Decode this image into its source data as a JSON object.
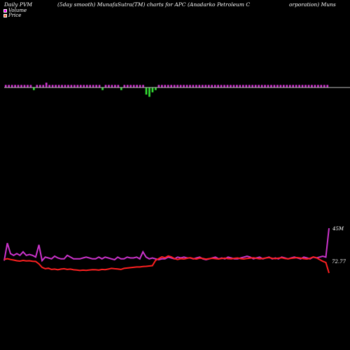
{
  "header": {
    "title_part1": "Daily PVM",
    "title_part2": "(5day smooth) MunafaSutra(TM) charts for APC",
    "title_part3": "(Anadarko  Petroleum  C",
    "title_part4": "orporation) Muns"
  },
  "legend": [
    {
      "label": "Volume",
      "color": "#ff00ff"
    },
    {
      "label": "Price",
      "color": "#ff6a3d"
    }
  ],
  "colors": {
    "background": "#000000",
    "volume_bar": "#cc33cc",
    "volume_bar_neg": "#33dd33",
    "volume_line": "#cc33cc",
    "price_line": "#ff2020",
    "baseline": "#bbbbbb"
  },
  "chart_data": {
    "type": "line",
    "volume_end_label": "45M",
    "price_end_label": "72.77",
    "pvm_bars": [
      1,
      1,
      1,
      1,
      1,
      1,
      1,
      1,
      1,
      -1,
      1,
      1,
      1,
      2,
      1,
      1,
      1,
      1,
      1,
      1,
      1,
      1,
      1,
      1,
      1,
      1,
      1,
      1,
      1,
      1,
      1,
      -1,
      1,
      1,
      1,
      1,
      1,
      -1,
      1,
      1,
      1,
      1,
      1,
      1,
      1,
      -3,
      -4,
      -2,
      -1,
      1,
      1,
      1,
      1,
      1,
      1,
      1,
      1,
      1,
      1,
      1,
      1,
      1,
      1,
      1,
      1,
      1,
      1,
      1,
      1,
      1,
      1,
      1,
      1,
      1,
      1,
      1,
      1,
      1,
      1,
      1,
      1,
      1,
      1,
      1,
      1,
      1,
      1,
      1,
      1,
      1,
      1,
      1,
      1,
      1,
      1,
      1,
      1,
      1,
      1,
      1,
      1,
      1,
      1,
      1
    ],
    "volume_series": [
      8,
      28,
      16,
      14,
      16,
      14,
      18,
      14,
      15,
      14,
      12,
      26,
      8,
      12,
      11,
      10,
      13,
      11,
      10,
      10,
      14,
      12,
      10,
      10,
      10,
      11,
      12,
      11,
      10,
      10,
      12,
      10,
      12,
      11,
      10,
      9,
      12,
      10,
      10,
      12,
      11,
      11,
      12,
      10,
      18,
      12,
      10,
      11,
      10,
      9,
      10,
      10,
      12,
      11,
      10,
      12,
      11,
      12,
      11,
      11,
      10,
      11,
      12,
      10,
      9,
      10,
      11,
      12,
      10,
      11,
      10,
      12,
      11,
      10,
      10,
      11,
      12,
      13,
      12,
      10,
      11,
      12,
      10,
      11,
      12,
      10,
      11,
      10,
      12,
      11,
      10,
      11,
      12,
      11,
      10,
      12,
      11,
      10,
      12,
      11,
      12,
      13,
      12,
      45
    ],
    "price_series": [
      80.5,
      81,
      80.5,
      80.2,
      79.8,
      79.6,
      80,
      79.7,
      79.8,
      79.5,
      79.4,
      78,
      76,
      75.2,
      75.5,
      74.8,
      75,
      74.6,
      75,
      75.2,
      74.8,
      75,
      74.6,
      74.5,
      74.2,
      74.4,
      74.3,
      74.5,
      74.7,
      74.6,
      74.4,
      74.8,
      74.7,
      75,
      75.4,
      75.2,
      75.1,
      74.8,
      75.4,
      75.6,
      75.8,
      76,
      76.2,
      76.2,
      76.5,
      76.6,
      76.8,
      77,
      80,
      81,
      82,
      81.5,
      82.5,
      82,
      81,
      80.5,
      81,
      80.8,
      81.2,
      81.5,
      81,
      80.8,
      81.3,
      81.1,
      80.7,
      81,
      81.2,
      81,
      80.8,
      81.1,
      81.3,
      81,
      80.9,
      81.2,
      81.4,
      81,
      80.8,
      81.1,
      81.3,
      81.5,
      81.2,
      80.9,
      81.1,
      81.4,
      81.6,
      81.2,
      81,
      81.3,
      81.5,
      81.1,
      80.9,
      81.2,
      81.4,
      81.6,
      81.3,
      81,
      80.8,
      81.2,
      82,
      81.5,
      80.5,
      79.5,
      78.8,
      72.77
    ]
  }
}
